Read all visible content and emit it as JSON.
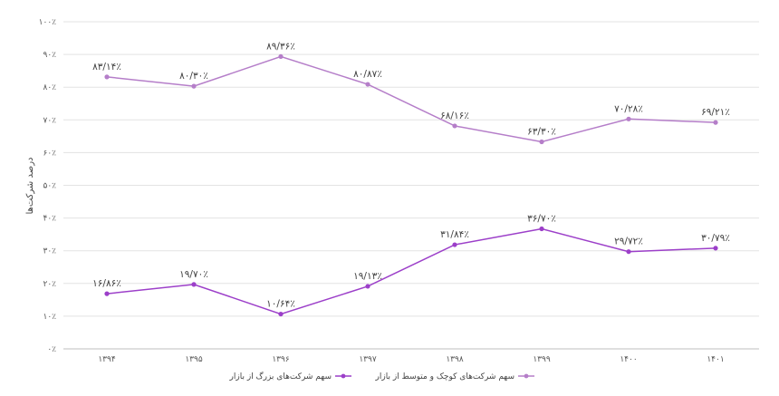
{
  "chart_data": {
    "type": "line",
    "title": "",
    "xlabel": "",
    "ylabel": "درصد شرکت‌ها",
    "categories": [
      "۱۳۹۴",
      "۱۳۹۵",
      "۱۳۹۶",
      "۱۳۹۷",
      "۱۳۹۸",
      "۱۳۹۹",
      "۱۴۰۰",
      "۱۴۰۱"
    ],
    "y_ticks": [
      "۰٪",
      "۱۰٪",
      "۲۰٪",
      "۳۰٪",
      "۴۰٪",
      "۵۰٪",
      "۶۰٪",
      "۷۰٪",
      "۸۰٪",
      "۹۰٪",
      "۱۰۰٪"
    ],
    "ylim": [
      0,
      100
    ],
    "grid": true,
    "legend_position": "bottom",
    "series": [
      {
        "name": "سهم شرکت‌های کوچک و متوسط از بازار",
        "color": "#b57ec9",
        "values": [
          83.14,
          80.3,
          89.36,
          80.87,
          68.16,
          63.3,
          70.28,
          69.21
        ],
        "labels": [
          "۸۳/۱۴٪",
          "۸۰/۳۰٪",
          "۸۹/۳۶٪",
          "۸۰/۸۷٪",
          "۶۸/۱۶٪",
          "۶۳/۳۰٪",
          "۷۰/۲۸٪",
          "۶۹/۲۱٪"
        ]
      },
      {
        "name": "سهم شرکت‌های بزرگ از بازار",
        "color": "#9c3fc9",
        "values": [
          16.86,
          19.7,
          10.64,
          19.13,
          31.84,
          36.7,
          29.72,
          30.79
        ],
        "labels": [
          "۱۶/۸۶٪",
          "۱۹/۷۰٪",
          "۱۰/۶۴٪",
          "۱۹/۱۳٪",
          "۳۱/۸۴٪",
          "۳۶/۷۰٪",
          "۲۹/۷۲٪",
          "۳۰/۷۹٪"
        ]
      }
    ]
  }
}
